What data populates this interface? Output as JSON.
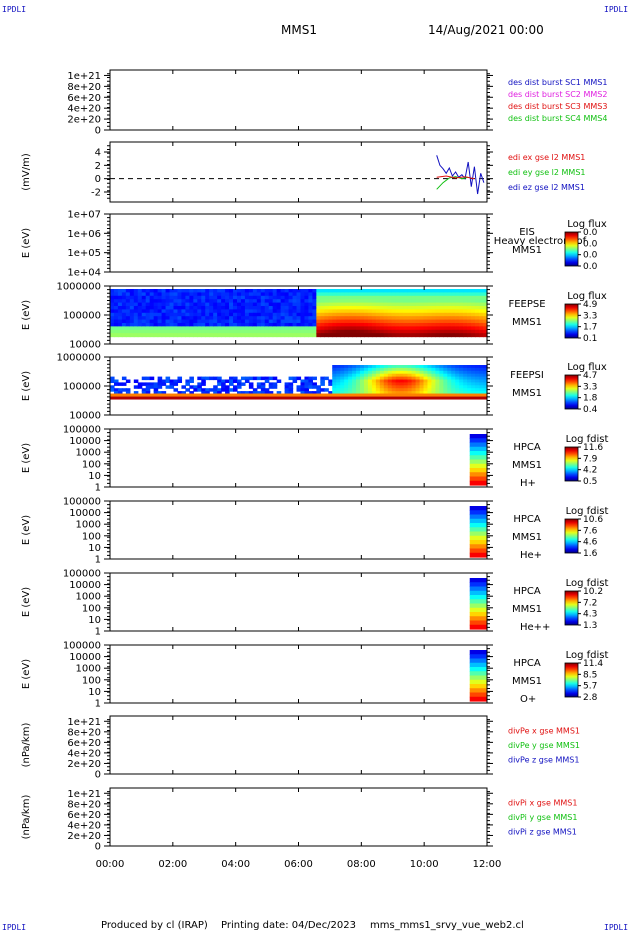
{
  "header": {
    "corner_label": "IPDLI",
    "mission": "MMS1",
    "date_time": "14/Aug/2021 00:00"
  },
  "footer": {
    "produced_by": "Produced by cl (IRAP)",
    "printing_date": "Printing date: 04/Dec/2023",
    "script_name": "mms_mms1_srvy_vue_web2.cl"
  },
  "colors": {
    "red": "#e01010",
    "green": "#10c010",
    "blue": "#1010c0",
    "magenta": "#e020e0"
  },
  "chart_data": [
    {
      "id": "p1",
      "type": "line",
      "ylabel": "",
      "yticks": [
        "1e+21",
        "8e+20",
        "6e+20",
        "4e+20",
        "2e+20",
        "0"
      ],
      "ylim": [
        0,
        1.1e+21
      ],
      "zero_line": true,
      "legend": [
        {
          "text": "des dist burst SC1 MMS1",
          "color": "#1010c0"
        },
        {
          "text": "des dist burst SC2 MMS2",
          "color": "#e020e0"
        },
        {
          "text": "des dist burst SC3 MMS3",
          "color": "#e01010"
        },
        {
          "text": "des dist burst SC4 MMS4",
          "color": "#10c010"
        }
      ],
      "series": []
    },
    {
      "id": "p2",
      "type": "line",
      "ylabel": "(mV/m)",
      "yticks": [
        "4",
        "2",
        "0",
        "-2"
      ],
      "ylim": [
        -3.5,
        5.5
      ],
      "zero_line": true,
      "legend": [
        {
          "text": "edi ex gse l2 MMS1",
          "color": "#e01010"
        },
        {
          "text": "edi ey gse l2 MMS1",
          "color": "#10c010"
        },
        {
          "text": "edi ez gse l2 MMS1",
          "color": "#1010c0"
        }
      ],
      "series": [
        {
          "color": "#1010c0",
          "x": [
            10.4,
            10.5,
            10.6,
            10.7,
            10.8,
            10.9,
            11.0,
            11.1,
            11.2,
            11.3,
            11.4,
            11.5,
            11.6,
            11.7,
            11.8,
            11.9
          ],
          "y": [
            3.5,
            2.0,
            1.5,
            0.8,
            1.6,
            0.4,
            1.0,
            0.2,
            0.6,
            0.0,
            2.5,
            -1.2,
            1.8,
            -2.3,
            0.8,
            -0.6
          ]
        },
        {
          "color": "#10c010",
          "x": [
            10.4,
            10.6,
            10.8,
            11.0,
            11.2,
            11.4
          ],
          "y": [
            -1.6,
            -0.6,
            0.1,
            0.3,
            0.0,
            0.2
          ]
        },
        {
          "color": "#e01010",
          "x": [
            10.4,
            10.7,
            11.0,
            11.3,
            11.6
          ],
          "y": [
            0.2,
            0.4,
            0.1,
            0.3,
            0.0
          ]
        }
      ]
    },
    {
      "id": "p3",
      "type": "heatmap",
      "ylabel": "E (eV)",
      "yticks": [
        "1e+07",
        "1e+06",
        "1e+05",
        "1e+04"
      ],
      "instrument": "EIS",
      "extra_label": "Heavy electron tof",
      "sc": "MMS1",
      "species": "",
      "cbar_title": "Log flux",
      "cbar_values": [
        "0.0",
        "0.0",
        "0.0",
        "0.0"
      ],
      "fill": "none"
    },
    {
      "id": "p4",
      "type": "heatmap",
      "ylabel": "E (eV)",
      "yticks": [
        "1000000",
        "100000",
        "10000"
      ],
      "instrument": "FEEPSE",
      "extra_label": "",
      "sc": "MMS1",
      "species": "",
      "cbar_title": "Log flux",
      "cbar_values": [
        "4.9",
        "3.3",
        "1.7",
        "0.1"
      ],
      "fill": "feepse"
    },
    {
      "id": "p5",
      "type": "heatmap",
      "ylabel": "E (eV)",
      "yticks": [
        "1000000",
        "100000",
        "10000"
      ],
      "instrument": "FEEPSI",
      "extra_label": "",
      "sc": "MMS1",
      "species": "",
      "cbar_title": "Log flux",
      "cbar_values": [
        "4.7",
        "3.3",
        "1.8",
        "0.4"
      ],
      "fill": "feepsi"
    },
    {
      "id": "p6",
      "type": "heatmap",
      "ylabel": "E (eV)",
      "yticks": [
        "100000",
        "10000",
        "1000",
        "100",
        "10",
        "1"
      ],
      "instrument": "HPCA",
      "extra_label": "",
      "sc": "MMS1",
      "species": "H+",
      "cbar_title": "Log fdist",
      "cbar_values": [
        "11.6",
        "7.9",
        "4.2",
        "0.5"
      ],
      "fill": "hpca"
    },
    {
      "id": "p7",
      "type": "heatmap",
      "ylabel": "E (eV)",
      "yticks": [
        "100000",
        "10000",
        "1000",
        "100",
        "10",
        "1"
      ],
      "instrument": "HPCA",
      "extra_label": "",
      "sc": "MMS1",
      "species": "He+",
      "cbar_title": "Log fdist",
      "cbar_values": [
        "10.6",
        "7.6",
        "4.6",
        "1.6"
      ],
      "fill": "hpca"
    },
    {
      "id": "p8",
      "type": "heatmap",
      "ylabel": "E (eV)",
      "yticks": [
        "100000",
        "10000",
        "1000",
        "100",
        "10",
        "1"
      ],
      "instrument": "HPCA",
      "extra_label": "",
      "sc": "MMS1",
      "species": "He++",
      "cbar_title": "Log fdist",
      "cbar_values": [
        "10.2",
        "7.2",
        "4.3",
        "1.3"
      ],
      "fill": "hpca"
    },
    {
      "id": "p9",
      "type": "heatmap",
      "ylabel": "E (eV)",
      "yticks": [
        "100000",
        "10000",
        "1000",
        "100",
        "10",
        "1"
      ],
      "instrument": "HPCA",
      "extra_label": "",
      "sc": "MMS1",
      "species": "O+",
      "cbar_title": "Log fdist",
      "cbar_values": [
        "11.4",
        "8.5",
        "5.7",
        "2.8"
      ],
      "fill": "hpca"
    },
    {
      "id": "p10",
      "type": "line",
      "ylabel": "(nPa/km)",
      "yticks": [
        "1e+21",
        "8e+20",
        "6e+20",
        "4e+20",
        "2e+20",
        "0"
      ],
      "ylim": [
        0,
        1.1e+21
      ],
      "zero_line": true,
      "legend": [
        {
          "text": "divPe x gse MMS1",
          "color": "#e01010"
        },
        {
          "text": "divPe y gse MMS1",
          "color": "#10c010"
        },
        {
          "text": "divPe z gse MMS1",
          "color": "#1010c0"
        }
      ],
      "series": []
    },
    {
      "id": "p11",
      "type": "line",
      "ylabel": "(nPa/km)",
      "yticks": [
        "1e+21",
        "8e+20",
        "6e+20",
        "4e+20",
        "2e+20",
        "0"
      ],
      "ylim": [
        0,
        1.1e+21
      ],
      "zero_line": true,
      "legend": [
        {
          "text": "divPi x gse MMS1",
          "color": "#e01010"
        },
        {
          "text": "divPi y gse MMS1",
          "color": "#10c010"
        },
        {
          "text": "divPi z gse MMS1",
          "color": "#1010c0"
        }
      ],
      "series": []
    }
  ],
  "x_axis": {
    "ticks": [
      "00:00",
      "02:00",
      "04:00",
      "06:00",
      "08:00",
      "10:00",
      "12:00"
    ],
    "range_hours": [
      0,
      12
    ]
  }
}
